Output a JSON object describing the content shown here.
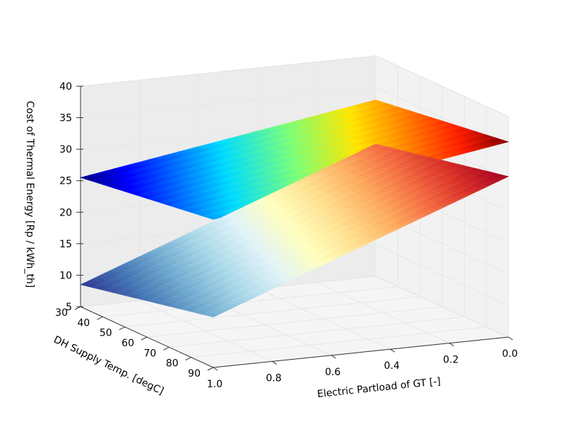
{
  "chart_data": {
    "type": "surface3d",
    "title": "",
    "xlabel": "Electric Partload of GT [-]",
    "ylabel": "DH Supply Temp. [degC]",
    "zlabel": "Cost of Thermal Energy [Rp / kWh_th]",
    "x_ticks": [
      "0.0",
      "0.2",
      "0.4",
      "0.6",
      "0.8",
      "1.0"
    ],
    "y_ticks": [
      "30",
      "40",
      "50",
      "60",
      "70",
      "80",
      "90"
    ],
    "z_ticks": [
      "5",
      "10",
      "15",
      "20",
      "25",
      "30",
      "35",
      "40"
    ],
    "xlim": [
      0.0,
      1.0
    ],
    "ylim": [
      30,
      90
    ],
    "zlim": [
      5,
      40
    ],
    "grid": true,
    "series": [
      {
        "colormap": "jet",
        "corners": {
          "x0_y30": 33.0,
          "x0_y90": 36.0,
          "x1_y30": 25.5,
          "x1_y90": 28.5
        }
      },
      {
        "colormap": "RdYlBu_r",
        "corners": {
          "x0_y30": 26.0,
          "x0_y90": 30.5,
          "x1_y30": 8.5,
          "x1_y90": 13.0
        }
      }
    ]
  }
}
